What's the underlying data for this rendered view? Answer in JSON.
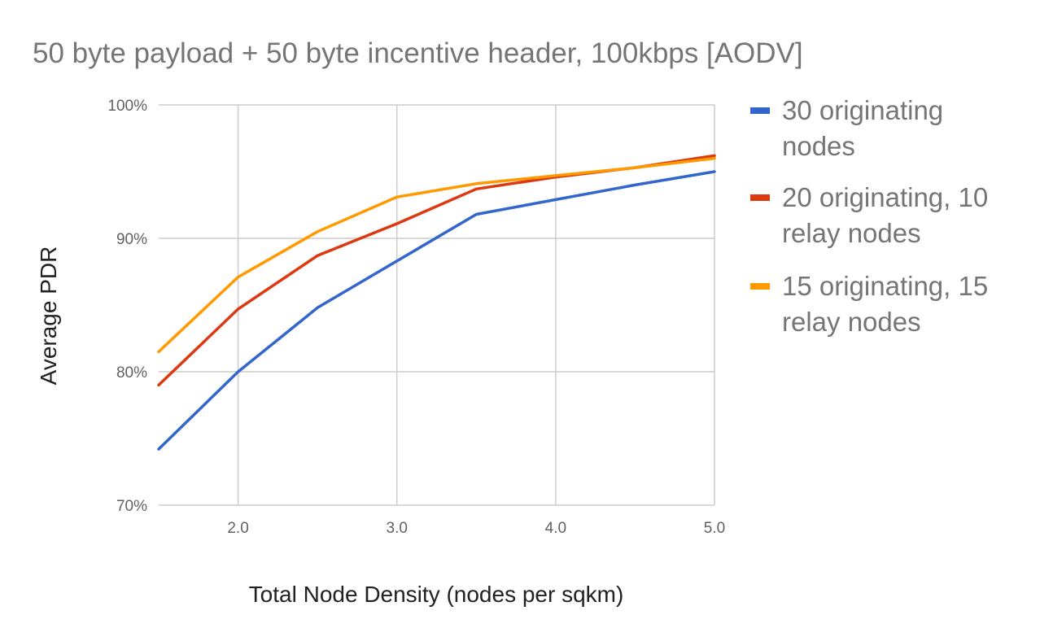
{
  "chart_data": {
    "type": "line",
    "title": "50 byte payload + 50 byte incentive header, 100kbps  [AODV]",
    "xlabel": "Total Node Density (nodes per sqkm)",
    "ylabel": "Average PDR",
    "xlim": [
      1.5,
      5.0
    ],
    "ylim": [
      70,
      100
    ],
    "x_ticks": [
      2.0,
      3.0,
      4.0,
      5.0
    ],
    "x_tick_labels": [
      "2.0",
      "3.0",
      "4.0",
      "5.0"
    ],
    "y_ticks": [
      70,
      80,
      90,
      100
    ],
    "y_tick_labels": [
      "70%",
      "80%",
      "90%",
      "100%"
    ],
    "grid": true,
    "legend_position": "right",
    "x": [
      1.5,
      2.0,
      2.5,
      3.0,
      3.5,
      4.0,
      4.5,
      5.0
    ],
    "series": [
      {
        "name_lines": [
          "30 originating",
          "nodes"
        ],
        "color": "#3366cc",
        "values": [
          74.2,
          80.0,
          84.8,
          88.3,
          91.8,
          92.9,
          94.0,
          95.0
        ]
      },
      {
        "name_lines": [
          "20 originating, 10",
          "relay nodes"
        ],
        "color": "#dc3912",
        "values": [
          79.0,
          84.7,
          88.7,
          91.1,
          93.7,
          94.6,
          95.3,
          96.2
        ]
      },
      {
        "name_lines": [
          "15 originating, 15",
          "relay nodes"
        ],
        "color": "#ff9900",
        "values": [
          81.5,
          87.1,
          90.5,
          93.1,
          94.1,
          94.7,
          95.3,
          96.0
        ]
      }
    ]
  }
}
